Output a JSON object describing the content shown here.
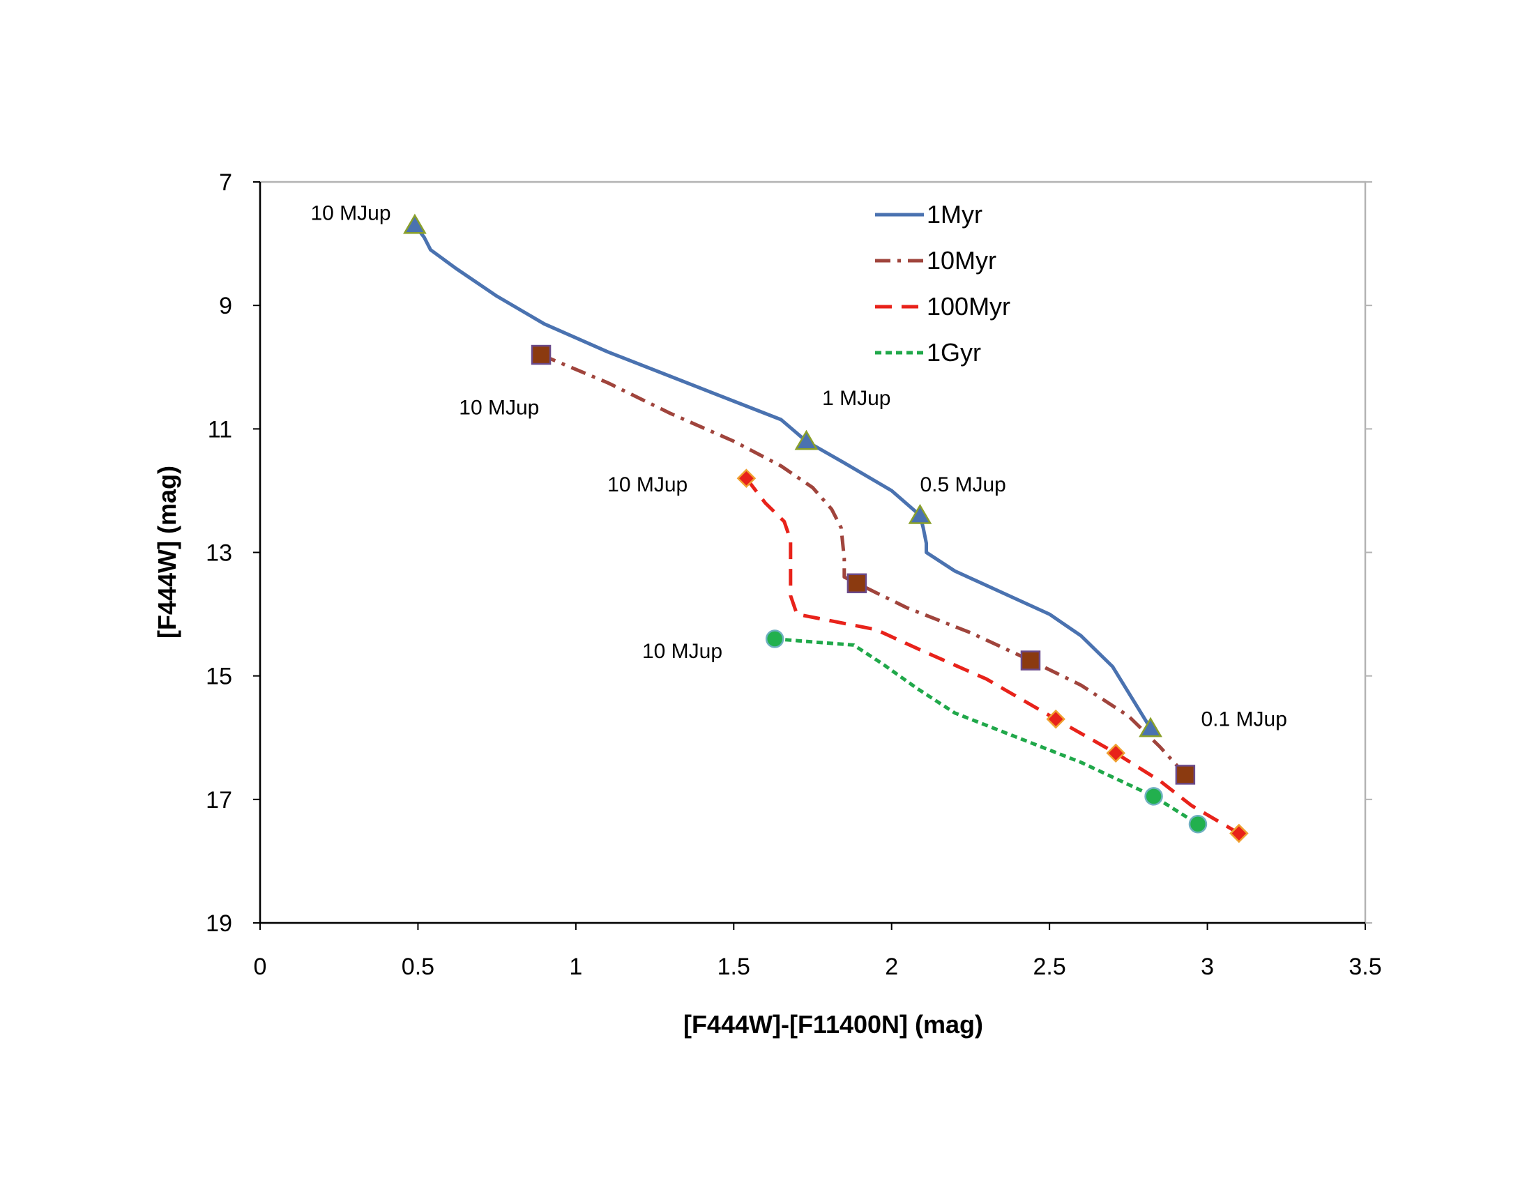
{
  "chart_data": {
    "type": "line",
    "title": "",
    "xlabel": "[F444W]-[F11400N] (mag)",
    "ylabel": "[F444W] (mag)",
    "xlim": [
      0,
      3.5
    ],
    "ylim": [
      7,
      19
    ],
    "y_inverted": true,
    "x_ticks": [
      0,
      0.5,
      1,
      1.5,
      2,
      2.5,
      3,
      3.5
    ],
    "x_tick_labels": [
      "0",
      "0.5",
      "1",
      "1.5",
      "2",
      "2.5",
      "3",
      "3.5"
    ],
    "y_ticks": [
      7,
      9,
      11,
      13,
      15,
      17,
      19
    ],
    "y_tick_labels": [
      "7",
      "9",
      "11",
      "13",
      "15",
      "17",
      "19"
    ],
    "grid": false,
    "legend_position": "top-center",
    "series": [
      {
        "name": "1Myr",
        "color": "#4a72b0",
        "dash": "solid",
        "marker": "triangle",
        "marker_color": "#4a72b0",
        "marker_edge": "#8aa02a",
        "line": [
          [
            0.49,
            7.7
          ],
          [
            0.52,
            7.9
          ],
          [
            0.54,
            8.1
          ],
          [
            0.62,
            8.4
          ],
          [
            0.75,
            8.85
          ],
          [
            0.9,
            9.3
          ],
          [
            1.1,
            9.75
          ],
          [
            1.3,
            10.15
          ],
          [
            1.5,
            10.55
          ],
          [
            1.65,
            10.85
          ],
          [
            1.73,
            11.2
          ],
          [
            1.85,
            11.55
          ],
          [
            2.0,
            12.0
          ],
          [
            2.09,
            12.4
          ],
          [
            2.1,
            12.6
          ],
          [
            2.11,
            12.85
          ],
          [
            2.11,
            13.0
          ],
          [
            2.2,
            13.3
          ],
          [
            2.35,
            13.65
          ],
          [
            2.5,
            14.0
          ],
          [
            2.6,
            14.35
          ],
          [
            2.7,
            14.85
          ],
          [
            2.82,
            15.85
          ]
        ],
        "markers": [
          [
            0.49,
            7.7
          ],
          [
            1.73,
            11.2
          ],
          [
            2.09,
            12.4
          ],
          [
            2.82,
            15.85
          ]
        ]
      },
      {
        "name": "10Myr",
        "color": "#a0443c",
        "dash": "dashdot",
        "marker": "square",
        "marker_color": "#8b3a10",
        "marker_edge": "#6a4a8a",
        "line": [
          [
            0.89,
            9.8
          ],
          [
            1.1,
            10.25
          ],
          [
            1.3,
            10.75
          ],
          [
            1.5,
            11.2
          ],
          [
            1.65,
            11.6
          ],
          [
            1.75,
            11.95
          ],
          [
            1.81,
            12.3
          ],
          [
            1.84,
            12.6
          ],
          [
            1.85,
            13.1
          ],
          [
            1.85,
            13.4
          ],
          [
            1.89,
            13.5
          ],
          [
            2.05,
            13.9
          ],
          [
            2.25,
            14.3
          ],
          [
            2.44,
            14.75
          ],
          [
            2.6,
            15.15
          ],
          [
            2.75,
            15.65
          ],
          [
            2.85,
            16.15
          ],
          [
            2.93,
            16.6
          ]
        ],
        "markers": [
          [
            0.89,
            9.8
          ],
          [
            1.89,
            13.5
          ],
          [
            2.44,
            14.75
          ],
          [
            2.93,
            16.6
          ]
        ]
      },
      {
        "name": "100Myr",
        "color": "#e8221a",
        "dash": "dashed",
        "marker": "diamond",
        "marker_color": "#e8221a",
        "marker_edge": "#f0a030",
        "line": [
          [
            1.54,
            11.8
          ],
          [
            1.6,
            12.2
          ],
          [
            1.66,
            12.5
          ],
          [
            1.68,
            12.8
          ],
          [
            1.68,
            13.3
          ],
          [
            1.68,
            13.7
          ],
          [
            1.7,
            14.0
          ],
          [
            1.8,
            14.1
          ],
          [
            1.95,
            14.25
          ],
          [
            2.1,
            14.6
          ],
          [
            2.3,
            15.05
          ],
          [
            2.52,
            15.7
          ],
          [
            2.71,
            16.25
          ],
          [
            2.85,
            16.7
          ],
          [
            2.95,
            17.1
          ],
          [
            3.1,
            17.55
          ]
        ],
        "markers": [
          [
            1.54,
            11.8
          ],
          [
            2.52,
            15.7
          ],
          [
            2.71,
            16.25
          ],
          [
            3.1,
            17.55
          ]
        ]
      },
      {
        "name": "1Gyr",
        "color": "#20a84a",
        "dash": "dotted",
        "marker": "circle",
        "marker_color": "#22b04e",
        "marker_edge": "#6fb0c0",
        "line": [
          [
            1.63,
            14.4
          ],
          [
            1.75,
            14.45
          ],
          [
            1.88,
            14.5
          ],
          [
            1.97,
            14.8
          ],
          [
            2.08,
            15.2
          ],
          [
            2.2,
            15.6
          ],
          [
            2.4,
            16.0
          ],
          [
            2.6,
            16.4
          ],
          [
            2.83,
            16.95
          ],
          [
            2.97,
            17.4
          ]
        ],
        "markers": [
          [
            1.63,
            14.4
          ],
          [
            2.83,
            16.95
          ],
          [
            2.97,
            17.4
          ]
        ]
      }
    ],
    "annotations": [
      {
        "text": "10 MJup",
        "x": 0.16,
        "y": 7.5
      },
      {
        "text": "10 MJup",
        "x": 0.63,
        "y": 10.65
      },
      {
        "text": "1  MJup",
        "x": 1.78,
        "y": 10.5
      },
      {
        "text": "10 MJup",
        "x": 1.1,
        "y": 11.9
      },
      {
        "text": "0.5 MJup",
        "x": 2.09,
        "y": 11.9
      },
      {
        "text": "10 MJup",
        "x": 1.21,
        "y": 14.6
      },
      {
        "text": "0.1 MJup",
        "x": 2.98,
        "y": 15.7
      }
    ]
  }
}
